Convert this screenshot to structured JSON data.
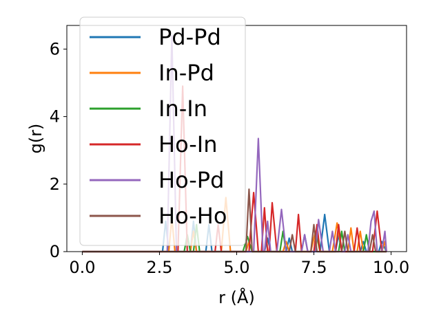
{
  "chart_data": {
    "type": "line",
    "xlabel": "r (Å)",
    "ylabel": "g(r)",
    "xlim": [
      -0.5,
      10.5
    ],
    "ylim": [
      0,
      6.7
    ],
    "xticks": [
      0.0,
      2.5,
      5.0,
      7.5,
      10.0
    ],
    "xtick_labels": [
      "0.0",
      "2.5",
      "5.0",
      "7.5",
      "10.0"
    ],
    "yticks": [
      0,
      2,
      4,
      6
    ],
    "ytick_labels": [
      "0",
      "2",
      "4",
      "6"
    ],
    "grid": false,
    "legend_position": "upper left",
    "series": [
      {
        "name": "Pd-Pd",
        "color": "#1f77b4",
        "points": [
          [
            0,
            0
          ],
          [
            2.6,
            0
          ],
          [
            2.7,
            0.9
          ],
          [
            2.8,
            0
          ],
          [
            3.5,
            0
          ],
          [
            3.6,
            0.9
          ],
          [
            3.7,
            0
          ],
          [
            4.0,
            0
          ],
          [
            4.1,
            0.8
          ],
          [
            4.2,
            0
          ],
          [
            5.9,
            0
          ],
          [
            6.0,
            0.4
          ],
          [
            6.1,
            0
          ],
          [
            6.6,
            0
          ],
          [
            6.7,
            0.4
          ],
          [
            6.8,
            0
          ],
          [
            7.1,
            0
          ],
          [
            7.2,
            0.5
          ],
          [
            7.3,
            0
          ],
          [
            7.7,
            0
          ],
          [
            7.85,
            1.1
          ],
          [
            8.0,
            0
          ],
          [
            8.2,
            0
          ],
          [
            8.3,
            0.5
          ],
          [
            8.4,
            0
          ],
          [
            9.0,
            0
          ],
          [
            9.1,
            0.3
          ],
          [
            9.2,
            0
          ],
          [
            9.6,
            0
          ],
          [
            9.7,
            0.3
          ],
          [
            9.85,
            0
          ]
        ]
      },
      {
        "name": "In-Pd",
        "color": "#ff7f0e",
        "points": [
          [
            0,
            0
          ],
          [
            2.8,
            0
          ],
          [
            2.9,
            1.0
          ],
          [
            3.0,
            0
          ],
          [
            3.5,
            0
          ],
          [
            3.6,
            0.6
          ],
          [
            3.7,
            0
          ],
          [
            4.5,
            0
          ],
          [
            4.65,
            1.6
          ],
          [
            4.8,
            0
          ],
          [
            5.3,
            0
          ],
          [
            5.4,
            0.3
          ],
          [
            5.5,
            0
          ],
          [
            6.5,
            0
          ],
          [
            6.6,
            0.3
          ],
          [
            6.7,
            0
          ],
          [
            7.4,
            0
          ],
          [
            7.55,
            0.6
          ],
          [
            7.7,
            0
          ],
          [
            8.1,
            0
          ],
          [
            8.25,
            0.85
          ],
          [
            8.4,
            0
          ],
          [
            8.6,
            0
          ],
          [
            8.7,
            0.7
          ],
          [
            8.8,
            0
          ],
          [
            8.9,
            0
          ],
          [
            9.0,
            0.6
          ],
          [
            9.1,
            0
          ],
          [
            9.7,
            0
          ],
          [
            9.8,
            0.3
          ],
          [
            9.85,
            0
          ]
        ]
      },
      {
        "name": "In-In",
        "color": "#2ca02c",
        "points": [
          [
            0,
            0
          ],
          [
            3.3,
            0
          ],
          [
            3.4,
            0.5
          ],
          [
            3.5,
            0
          ],
          [
            3.6,
            0
          ],
          [
            3.7,
            0.8
          ],
          [
            3.8,
            0
          ],
          [
            5.2,
            0
          ],
          [
            5.35,
            0.45
          ],
          [
            5.5,
            0
          ],
          [
            6.4,
            0
          ],
          [
            6.5,
            0.6
          ],
          [
            6.6,
            0
          ],
          [
            7.5,
            0
          ],
          [
            7.6,
            0.5
          ],
          [
            7.7,
            0
          ],
          [
            8.3,
            0
          ],
          [
            8.4,
            0.6
          ],
          [
            8.5,
            0
          ],
          [
            9.1,
            0
          ],
          [
            9.2,
            0.5
          ],
          [
            9.3,
            0
          ],
          [
            9.85,
            0
          ]
        ]
      },
      {
        "name": "Ho-In",
        "color": "#d62728",
        "points": [
          [
            0,
            0
          ],
          [
            3.1,
            0
          ],
          [
            3.25,
            4.9
          ],
          [
            3.4,
            0
          ],
          [
            4.3,
            0
          ],
          [
            4.4,
            0.8
          ],
          [
            4.5,
            0
          ],
          [
            5.4,
            0
          ],
          [
            5.55,
            1.75
          ],
          [
            5.7,
            0
          ],
          [
            5.8,
            0
          ],
          [
            5.9,
            1.3
          ],
          [
            6.0,
            0
          ],
          [
            6.05,
            0
          ],
          [
            6.15,
            1.45
          ],
          [
            6.3,
            0
          ],
          [
            6.9,
            0
          ],
          [
            7.0,
            1.1
          ],
          [
            7.1,
            0
          ],
          [
            7.5,
            0
          ],
          [
            7.6,
            0.8
          ],
          [
            7.7,
            0
          ],
          [
            8.2,
            0
          ],
          [
            8.3,
            0.8
          ],
          [
            8.4,
            0
          ],
          [
            8.8,
            0
          ],
          [
            8.9,
            0.7
          ],
          [
            9.0,
            0
          ],
          [
            9.4,
            0
          ],
          [
            9.55,
            1.2
          ],
          [
            9.7,
            0
          ],
          [
            9.85,
            0
          ]
        ]
      },
      {
        "name": "Ho-Pd",
        "color": "#9467bd",
        "points": [
          [
            0,
            0
          ],
          [
            2.75,
            0
          ],
          [
            2.9,
            6.4
          ],
          [
            3.05,
            0
          ],
          [
            5.55,
            0
          ],
          [
            5.7,
            3.35
          ],
          [
            5.85,
            0
          ],
          [
            5.9,
            0
          ],
          [
            6.0,
            0.9
          ],
          [
            6.1,
            0
          ],
          [
            6.3,
            0
          ],
          [
            6.45,
            1.25
          ],
          [
            6.6,
            0
          ],
          [
            7.1,
            0
          ],
          [
            7.2,
            0.5
          ],
          [
            7.3,
            0
          ],
          [
            7.55,
            0
          ],
          [
            7.65,
            0.95
          ],
          [
            7.8,
            0
          ],
          [
            8.0,
            0
          ],
          [
            8.1,
            0.6
          ],
          [
            8.2,
            0
          ],
          [
            8.5,
            0
          ],
          [
            8.6,
            0.5
          ],
          [
            8.7,
            0
          ],
          [
            9.25,
            0
          ],
          [
            9.35,
            0.9
          ],
          [
            9.45,
            1.2
          ],
          [
            9.55,
            0
          ],
          [
            9.7,
            0
          ],
          [
            9.8,
            0.6
          ],
          [
            9.85,
            0
          ]
        ]
      },
      {
        "name": "Ho-Ho",
        "color": "#8c564b",
        "points": [
          [
            0,
            0
          ],
          [
            5.3,
            0
          ],
          [
            5.4,
            1.85
          ],
          [
            5.5,
            0
          ],
          [
            6.7,
            0
          ],
          [
            6.8,
            0.5
          ],
          [
            6.9,
            0
          ],
          [
            7.4,
            0
          ],
          [
            7.5,
            0.8
          ],
          [
            7.6,
            0
          ],
          [
            8.4,
            0
          ],
          [
            8.5,
            0.6
          ],
          [
            8.6,
            0
          ],
          [
            9.3,
            0
          ],
          [
            9.4,
            0.5
          ],
          [
            9.5,
            0
          ],
          [
            9.85,
            0
          ]
        ]
      }
    ]
  }
}
